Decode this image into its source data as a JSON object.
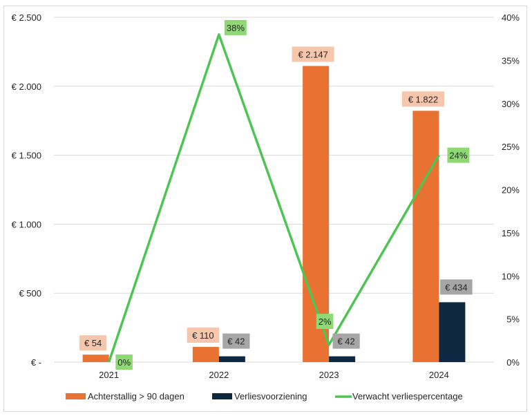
{
  "chart_data": {
    "type": "bar",
    "title": "",
    "xlabel": "",
    "ylabel": "",
    "y2label": "",
    "categories": [
      "2021",
      "2022",
      "2023",
      "2024"
    ],
    "series": [
      {
        "name": "Achterstallig > 90 dagen",
        "type": "bar",
        "axis": "left",
        "color": "#E97132",
        "values": [
          54,
          110,
          2147,
          1822
        ],
        "labels": [
          "€ 54",
          "€ 110",
          "€ 2.147",
          "€ 1.822"
        ],
        "label_bg": "#F6C6AD"
      },
      {
        "name": "Verliesvoorziening",
        "type": "bar",
        "axis": "left",
        "color": "#0E2841",
        "values": [
          0,
          42,
          42,
          434
        ],
        "labels": [
          "",
          "€ 42",
          "€ 42",
          "€ 434"
        ],
        "label_bg": "#A6A6A6"
      },
      {
        "name": "Verwacht verliespercentage",
        "type": "line",
        "axis": "right",
        "color": "#4EC553",
        "values": [
          0,
          38,
          2,
          24
        ],
        "labels": [
          "0%",
          "38%",
          "2%",
          "24%"
        ],
        "label_bg": "#8ED973"
      }
    ],
    "ylim": [
      0,
      2500
    ],
    "y_ticks": [
      0,
      500,
      1000,
      1500,
      2000,
      2500
    ],
    "y_tick_labels": [
      "€ -",
      "€ 500",
      "€ 1.000",
      "€ 1.500",
      "€ 2.000",
      "€ 2.500"
    ],
    "y2lim": [
      0,
      40
    ],
    "y2_ticks": [
      0,
      5,
      10,
      15,
      20,
      25,
      30,
      35,
      40
    ],
    "y2_tick_labels": [
      "0%",
      "5%",
      "10%",
      "15%",
      "20%",
      "25%",
      "30%",
      "35%",
      "40%"
    ],
    "grid": true,
    "legend_position": "bottom"
  }
}
